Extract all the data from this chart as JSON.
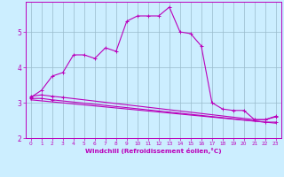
{
  "xlabel": "Windchill (Refroidissement éolien,°C)",
  "background_color": "#cceeff",
  "line_color": "#bb00bb",
  "grid_color": "#99bbcc",
  "xlim": [
    -0.5,
    23.5
  ],
  "ylim": [
    2.0,
    5.85
  ],
  "xticks": [
    0,
    1,
    2,
    3,
    4,
    5,
    6,
    7,
    8,
    9,
    10,
    11,
    12,
    13,
    14,
    15,
    16,
    17,
    18,
    19,
    20,
    21,
    22,
    23
  ],
  "yticks": [
    2,
    3,
    4,
    5
  ],
  "line1_x": [
    0,
    1,
    2,
    3,
    4,
    5,
    6,
    7,
    8,
    9,
    10,
    11,
    12,
    13,
    14,
    15,
    16,
    17,
    18,
    19,
    20,
    21,
    22,
    23
  ],
  "line1_y": [
    3.15,
    3.35,
    3.75,
    3.85,
    4.35,
    4.35,
    4.25,
    4.55,
    4.45,
    5.3,
    5.45,
    5.45,
    5.45,
    5.7,
    5.0,
    4.95,
    4.6,
    3.0,
    2.82,
    2.78,
    2.78,
    2.52,
    2.52,
    2.62
  ],
  "line2_x": [
    0,
    1,
    2,
    3,
    21,
    22,
    23
  ],
  "line2_y": [
    3.18,
    3.22,
    3.18,
    3.15,
    2.52,
    2.52,
    2.6
  ],
  "line3_x": [
    0,
    1,
    2,
    22,
    23
  ],
  "line3_y": [
    3.12,
    3.12,
    3.08,
    2.45,
    2.45
  ],
  "line4_x": [
    0,
    23
  ],
  "line4_y": [
    3.08,
    2.42
  ]
}
